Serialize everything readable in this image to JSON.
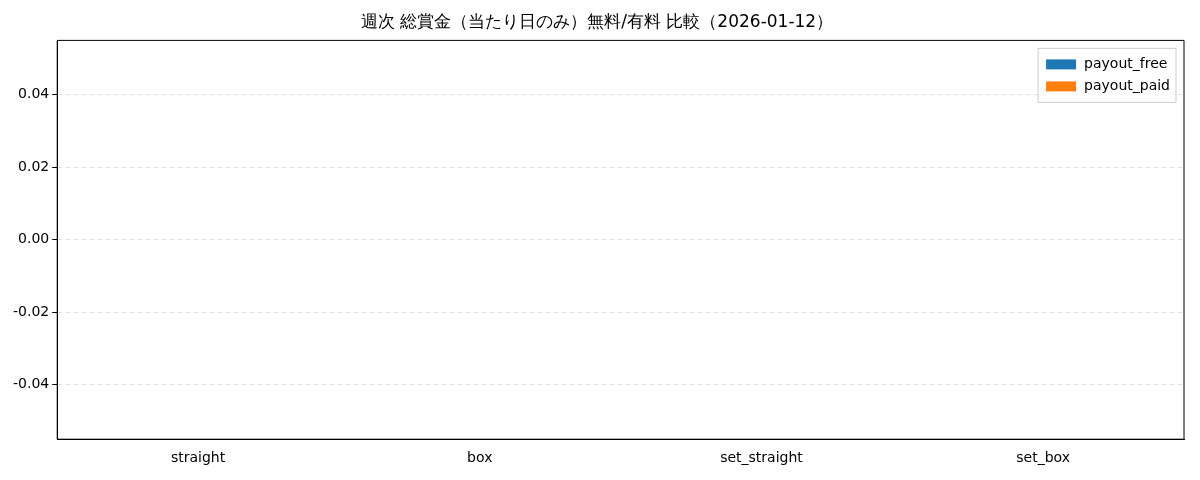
{
  "chart_data": {
    "type": "bar",
    "title": "週次 総賞金（当たり日のみ）無料/有料 比較（2026-01-12）",
    "categories": [
      "straight",
      "box",
      "set_straight",
      "set_box"
    ],
    "series": [
      {
        "name": "payout_free",
        "color": "#1f77b4",
        "values": [
          0,
          0,
          0,
          0
        ]
      },
      {
        "name": "payout_paid",
        "color": "#ff7f0e",
        "values": [
          0,
          0,
          0,
          0
        ]
      }
    ],
    "ylim": [
      -0.055,
      0.055
    ],
    "yticks": [
      -0.04,
      -0.02,
      {
        "value": 0,
        "label": "0.00"
      },
      0.02,
      0.04
    ],
    "grid": "y",
    "legend": "top right"
  }
}
